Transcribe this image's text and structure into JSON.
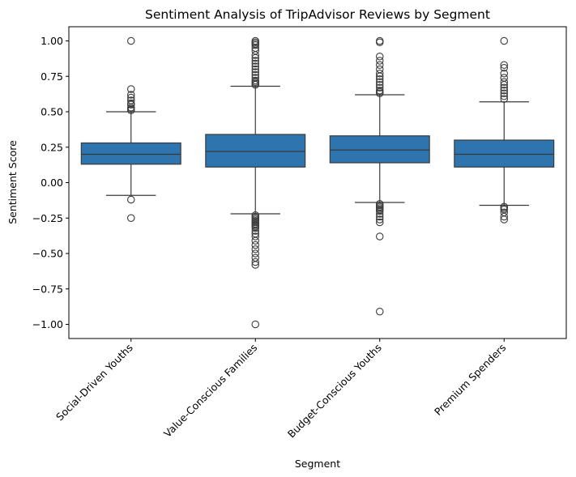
{
  "chart_data": {
    "type": "box",
    "title": "Sentiment Analysis of TripAdvisor Reviews by Segment",
    "xlabel": "Segment",
    "ylabel": "Sentiment Score",
    "ylim": [
      -1.1,
      1.1
    ],
    "yticks": [
      1.0,
      0.75,
      0.5,
      0.25,
      0.0,
      -0.25,
      -0.5,
      -0.75,
      -1.0
    ],
    "ytick_labels": [
      "1.00",
      "0.75",
      "0.50",
      "0.25",
      "0.00",
      "−0.25",
      "−0.50",
      "−0.75",
      "−1.00"
    ],
    "grid": false,
    "box_color": "#2e75b0",
    "line_color": "#3a3a3a",
    "categories": [
      "Social-Driven Youths",
      "Value-Conscious Families",
      "Budget-Conscious Youths",
      "Premium Spenders"
    ],
    "boxes": [
      {
        "q1": 0.13,
        "median": 0.2,
        "q3": 0.28,
        "whisker_low": -0.09,
        "whisker_high": 0.5,
        "outliers": [
          1.0,
          0.66,
          0.62,
          0.6,
          0.58,
          0.56,
          0.55,
          0.53,
          0.52,
          0.51,
          -0.12,
          -0.25
        ]
      },
      {
        "q1": 0.11,
        "median": 0.22,
        "q3": 0.34,
        "whisker_low": -0.22,
        "whisker_high": 0.68,
        "outliers": [
          1.0,
          0.99,
          0.98,
          0.97,
          0.95,
          0.93,
          0.9,
          0.88,
          0.86,
          0.84,
          0.82,
          0.8,
          0.78,
          0.76,
          0.74,
          0.72,
          0.71,
          0.7,
          0.69,
          -0.23,
          -0.24,
          -0.25,
          -0.26,
          -0.27,
          -0.28,
          -0.29,
          -0.3,
          -0.31,
          -0.32,
          -0.34,
          -0.36,
          -0.38,
          -0.41,
          -0.44,
          -0.47,
          -0.5,
          -0.53,
          -0.56,
          -0.58,
          -1.0
        ]
      },
      {
        "q1": 0.14,
        "median": 0.23,
        "q3": 0.33,
        "whisker_low": -0.14,
        "whisker_high": 0.62,
        "outliers": [
          1.0,
          0.99,
          0.89,
          0.86,
          0.83,
          0.8,
          0.77,
          0.75,
          0.73,
          0.71,
          0.69,
          0.67,
          0.65,
          0.64,
          0.63,
          -0.15,
          -0.16,
          -0.17,
          -0.18,
          -0.19,
          -0.2,
          -0.22,
          -0.24,
          -0.26,
          -0.28,
          -0.38,
          -0.91
        ]
      },
      {
        "q1": 0.11,
        "median": 0.2,
        "q3": 0.3,
        "whisker_low": -0.16,
        "whisker_high": 0.57,
        "outliers": [
          1.0,
          0.83,
          0.81,
          0.77,
          0.74,
          0.71,
          0.69,
          0.67,
          0.65,
          0.63,
          0.61,
          0.59,
          -0.17,
          -0.18,
          -0.19,
          -0.21,
          -0.24,
          -0.26
        ]
      }
    ]
  }
}
